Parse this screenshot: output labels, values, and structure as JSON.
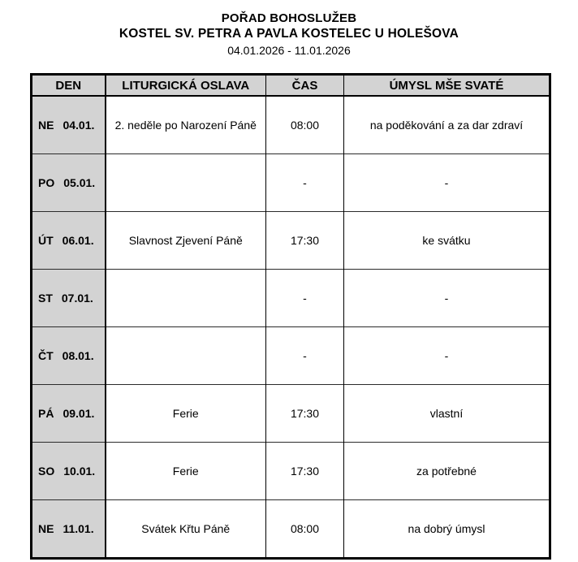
{
  "title": {
    "line1": "POŘAD BOHOSLUŽEB",
    "line2": "KOSTEL SV. PETRA A PAVLA KOSTELEC U HOLEŠOVA",
    "line3": "04.01.2026 - 11.01.2026"
  },
  "table": {
    "headers": [
      "DEN",
      "LITURGICKÁ OSLAVA",
      "ČAS",
      "ÚMYSL MŠE SVATÉ"
    ],
    "rows": [
      {
        "day": "NE",
        "date": "04.01.",
        "celebration": "2. neděle po Narození Páně",
        "time": "08:00",
        "intention": "na poděkování a za dar zdraví"
      },
      {
        "day": "PO",
        "date": "05.01.",
        "celebration": "",
        "time": "-",
        "intention": "-"
      },
      {
        "day": "ÚT",
        "date": "06.01.",
        "celebration": "Slavnost Zjevení Páně",
        "time": "17:30",
        "intention": "ke svátku"
      },
      {
        "day": "ST",
        "date": "07.01.",
        "celebration": "",
        "time": "-",
        "intention": "-"
      },
      {
        "day": "ČT",
        "date": "08.01.",
        "celebration": "",
        "time": "-",
        "intention": "-"
      },
      {
        "day": "PÁ",
        "date": "09.01.",
        "celebration": "Ferie",
        "time": "17:30",
        "intention": "vlastní"
      },
      {
        "day": "SO",
        "date": "10.01.",
        "celebration": "Ferie",
        "time": "17:30",
        "intention": "za potřebné"
      },
      {
        "day": "NE",
        "date": "11.01.",
        "celebration": "Svátek Křtu Páně",
        "time": "08:00",
        "intention": "na dobrý úmysl"
      }
    ]
  },
  "colors": {
    "header_bg": "#d3d3d3",
    "day_column_bg": "#d3d3d3",
    "border": "#000000"
  }
}
